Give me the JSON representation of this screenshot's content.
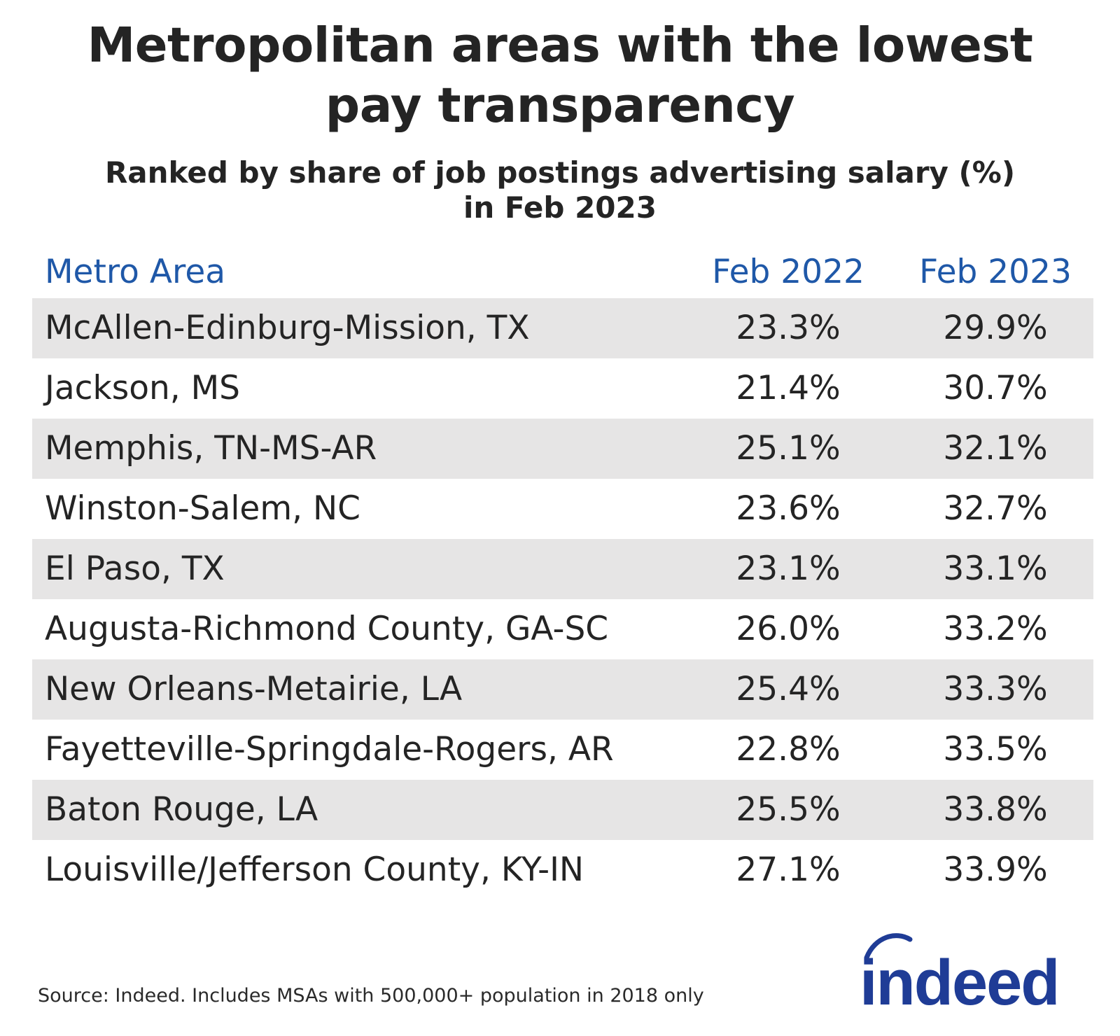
{
  "header": {
    "title_line1": "Metropolitan areas with the lowest",
    "title_line2": "pay transparency",
    "subtitle_line1": "Ranked by share of job postings advertising salary (%)",
    "subtitle_line2": "in Feb 2023"
  },
  "chart_data": {
    "type": "table",
    "title": "Metropolitan areas with the lowest pay transparency",
    "subtitle": "Ranked by share of job postings advertising salary (%) in Feb 2023",
    "columns": [
      "Metro Area",
      "Feb 2022",
      "Feb 2023"
    ],
    "rows": [
      {
        "metro": "McAllen-Edinburg-Mission, TX",
        "feb2022": "23.3%",
        "feb2023": "29.9%"
      },
      {
        "metro": "Jackson, MS",
        "feb2022": "21.4%",
        "feb2023": "30.7%"
      },
      {
        "metro": "Memphis, TN-MS-AR",
        "feb2022": "25.1%",
        "feb2023": "32.1%"
      },
      {
        "metro": "Winston-Salem, NC",
        "feb2022": "23.6%",
        "feb2023": "32.7%"
      },
      {
        "metro": "El Paso, TX",
        "feb2022": "23.1%",
        "feb2023": "33.1%"
      },
      {
        "metro": "Augusta-Richmond County, GA-SC",
        "feb2022": "26.0%",
        "feb2023": "33.2%"
      },
      {
        "metro": "New Orleans-Metairie, LA",
        "feb2022": "25.4%",
        "feb2023": "33.3%"
      },
      {
        "metro": "Fayetteville-Springdale-Rogers, AR",
        "feb2022": "22.8%",
        "feb2023": "33.5%"
      },
      {
        "metro": "Baton Rouge, LA",
        "feb2022": "25.5%",
        "feb2023": "33.8%"
      },
      {
        "metro": "Louisville/Jefferson County, KY-IN",
        "feb2022": "27.1%",
        "feb2023": "33.9%"
      }
    ]
  },
  "footer": {
    "source": "Source: Indeed. Includes MSAs with 500,000+ population in 2018 only"
  },
  "logo": {
    "text": "indeed",
    "icon": "indeed-logo-arc"
  },
  "colors": {
    "header_text": "#1f58a8",
    "row_shade": "#e6e5e5",
    "logo": "#1f3c96"
  }
}
